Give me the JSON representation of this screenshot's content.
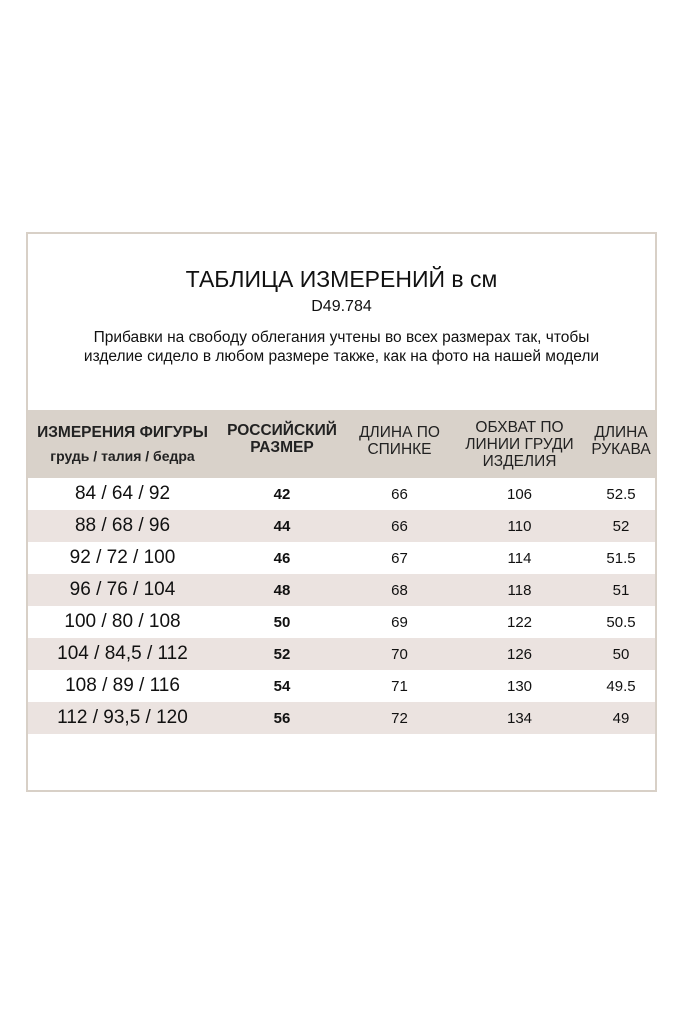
{
  "title": "ТАБЛИЦА ИЗМЕРЕНИЙ в см",
  "code": "D49.784",
  "note_line1": "Прибавки на свободу облегания учтены во всех размерах так, чтобы",
  "note_line2": "изделие сидело в любом размере также, как на фото на нашей модели",
  "headers": {
    "c1": "ИЗМЕРЕНИЯ ФИГУРЫ",
    "c1_sub": "грудь / талия / бедра",
    "c2": "РОССИЙСКИЙ РАЗМЕР",
    "c3": "ДЛИНА ПО СПИНКЕ",
    "c4": "ОБХВАТ ПО ЛИНИИ ГРУДИ ИЗДЕЛИЯ",
    "c5": "ДЛИНА РУКАВА"
  },
  "colors": {
    "header_bg": "#d9d2ca",
    "stripe_bg": "#ebe3e0",
    "border": "#d8d0c7"
  },
  "rows": [
    [
      "84 / 64 / 92",
      "42",
      "66",
      "106",
      "52.5"
    ],
    [
      "88 / 68 / 96",
      "44",
      "66",
      "110",
      "52"
    ],
    [
      "92 / 72 / 100",
      "46",
      "67",
      "114",
      "51.5"
    ],
    [
      "96 / 76 / 104",
      "48",
      "68",
      "118",
      "51"
    ],
    [
      "100 / 80 / 108",
      "50",
      "69",
      "122",
      "50.5"
    ],
    [
      "104 / 84,5 / 112",
      "52",
      "70",
      "126",
      "50"
    ],
    [
      "108 / 89 / 116",
      "54",
      "71",
      "130",
      "49.5"
    ],
    [
      "112 / 93,5 / 120",
      "56",
      "72",
      "134",
      "49"
    ]
  ]
}
